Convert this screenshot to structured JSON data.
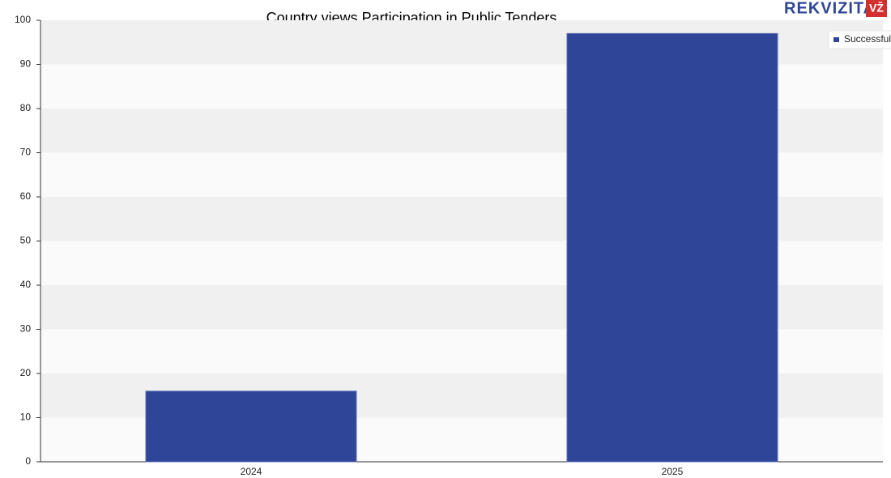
{
  "brand": {
    "name": "REKVIZITAI",
    "badge": "VŽ"
  },
  "chart_data": {
    "type": "bar",
    "title": "Country views Participation in Public Tenders",
    "categories": [
      "2024",
      "2025"
    ],
    "series": [
      {
        "name": "Successful",
        "color": "#2e4598",
        "values": [
          16,
          97
        ]
      }
    ],
    "ylim": [
      0,
      100
    ],
    "yticks": [
      0,
      10,
      20,
      30,
      40,
      50,
      60,
      70,
      80,
      90,
      100
    ],
    "grid": true,
    "legend": "top-right"
  }
}
